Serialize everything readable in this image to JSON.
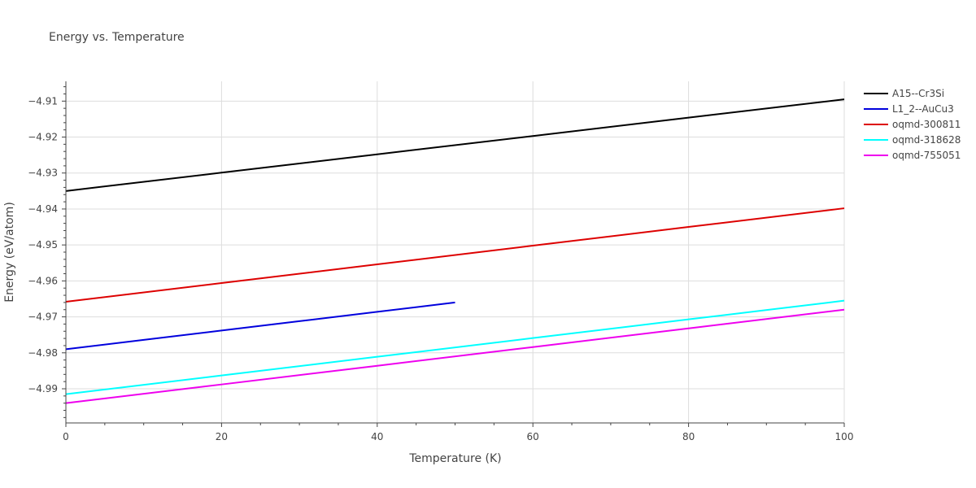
{
  "chart_data": {
    "type": "line",
    "title": "Energy vs. Temperature",
    "xlabel": "Temperature (K)",
    "ylabel": "Energy (eV/atom)",
    "xlim": [
      0,
      100
    ],
    "ylim": [
      -4.9995,
      -4.9045
    ],
    "xticks": [
      0,
      20,
      40,
      60,
      80,
      100
    ],
    "xtick_labels": [
      "0",
      "20",
      "40",
      "60",
      "80",
      "100"
    ],
    "yticks": [
      -4.99,
      -4.98,
      -4.97,
      -4.96,
      -4.95,
      -4.94,
      -4.93,
      -4.92,
      -4.91
    ],
    "ytick_labels": [
      "−4.99",
      "−4.98",
      "−4.97",
      "−4.96",
      "−4.95",
      "−4.94",
      "−4.93",
      "−4.92",
      "−4.91"
    ],
    "grid": true,
    "legend_position": "top-right",
    "series": [
      {
        "name": "A15--Cr3Si",
        "color": "#000000",
        "x": [
          0,
          20,
          40,
          60,
          80,
          100
        ],
        "y": [
          -4.935,
          -4.9299,
          -4.9248,
          -4.9197,
          -4.9146,
          -4.9095
        ]
      },
      {
        "name": "L1_2--AuCu3",
        "color": "#0000dd",
        "x": [
          0,
          10,
          20,
          30,
          40,
          50
        ],
        "y": [
          -4.979,
          -4.9764,
          -4.9738,
          -4.9712,
          -4.9686,
          -4.966
        ]
      },
      {
        "name": "oqmd-300811",
        "color": "#dd0000",
        "x": [
          0,
          20,
          40,
          60,
          80,
          100
        ],
        "y": [
          -4.9658,
          -4.9606,
          -4.9554,
          -4.9502,
          -4.945,
          -4.9398
        ]
      },
      {
        "name": "oqmd-318628",
        "color": "#00ffff",
        "x": [
          0,
          20,
          40,
          60,
          80,
          100
        ],
        "y": [
          -4.9915,
          -4.9863,
          -4.9811,
          -4.9759,
          -4.9707,
          -4.9655
        ]
      },
      {
        "name": "oqmd-755051",
        "color": "#ee00ee",
        "x": [
          0,
          20,
          40,
          60,
          80,
          100
        ],
        "y": [
          -4.994,
          -4.9888,
          -4.9836,
          -4.9784,
          -4.9732,
          -4.968
        ]
      }
    ]
  }
}
